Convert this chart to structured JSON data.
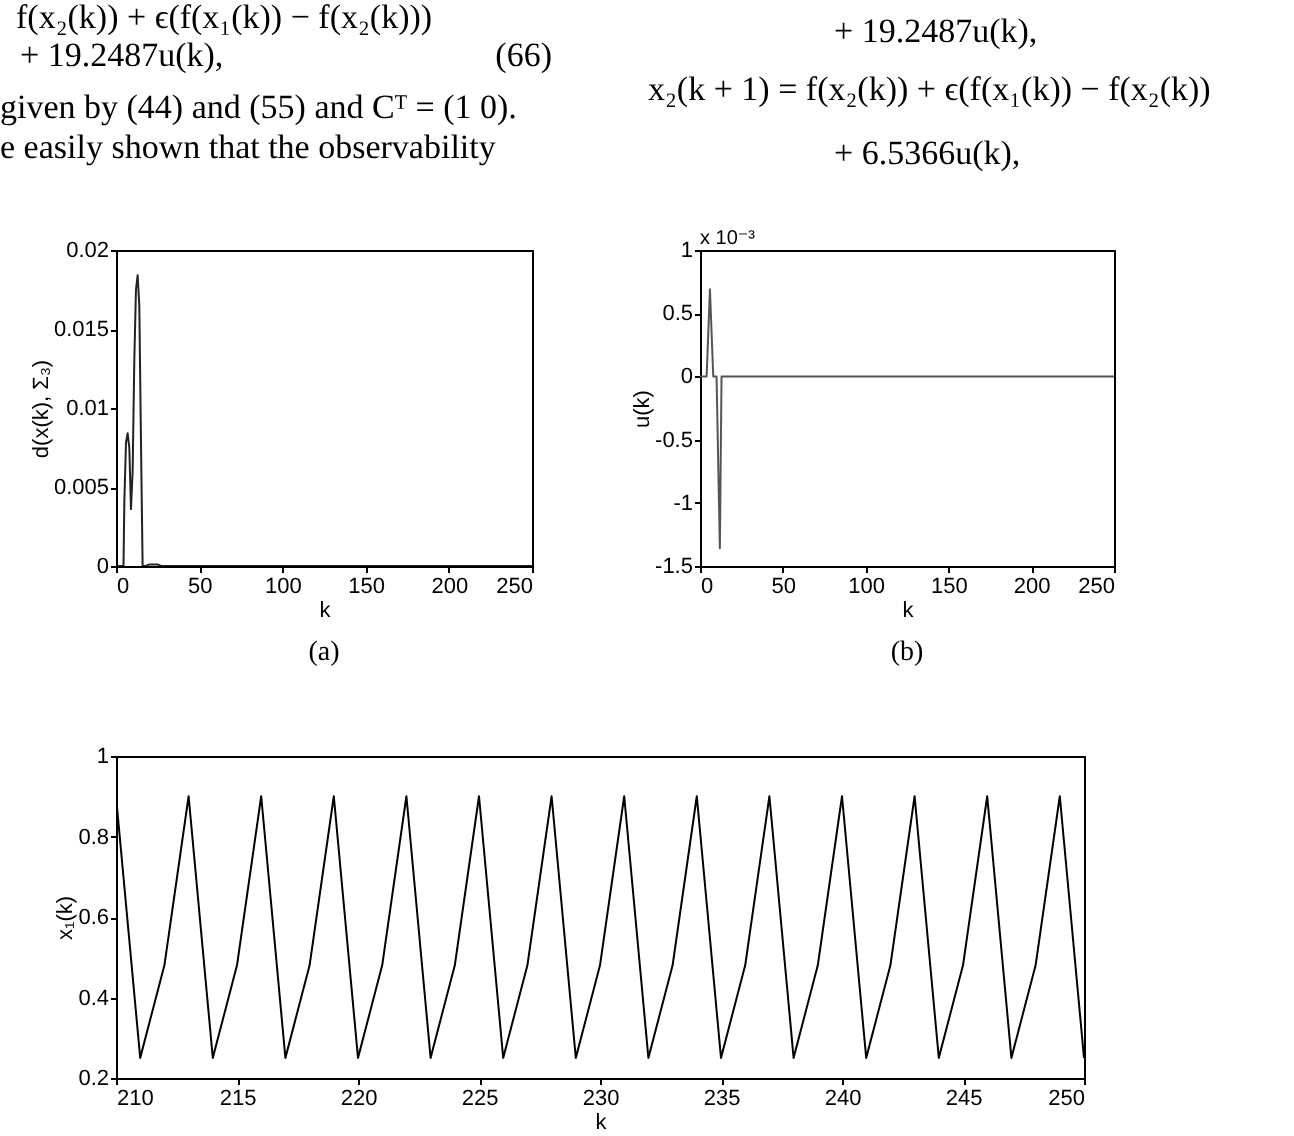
{
  "chart_data": [
    {
      "type": "other",
      "annotations": [
        "f(x₂(k)) + ϵ(f(x₁(k)) − f(x₂(k)))",
        "+ 19.2487u(k),",
        "(66)",
        "given by (44) and (55) and Cᵀ = (1 0).",
        "e easily shown that the observability",
        "+ 19.2487u(k),",
        "x₂(k + 1) = f(x₂(k)) + ϵ(f(x₁(k)) − f(x₂(k))",
        "+ 6.5366u(k),"
      ]
    },
    {
      "type": "line",
      "xlabel": "k",
      "ylabel": "d(x(k), Σ₃)",
      "xlim": [
        0,
        250
      ],
      "xticks": [
        0,
        50,
        100,
        150,
        200,
        250
      ],
      "ylim": [
        0,
        0.02
      ],
      "yticks": [
        0,
        0.005,
        0.01,
        0.015,
        0.02
      ],
      "grid": false,
      "annotations": [
        "(a)"
      ],
      "series": [
        {
          "color": "#222222",
          "x": [
            0,
            4.5,
            5,
            6,
            7,
            8,
            9,
            10,
            11,
            12,
            13,
            14,
            15,
            16,
            18,
            20,
            25,
            27,
            250
          ],
          "values": [
            0,
            0,
            0.004,
            0.0078,
            0.0084,
            0.0075,
            0.0036,
            0.006,
            0.013,
            0.0175,
            0.0184,
            0.0165,
            0.008,
            0,
            0,
            0.0001,
            0.0001,
            0,
            0
          ]
        }
      ]
    },
    {
      "type": "line",
      "xlabel": "k",
      "ylabel": "u(k)",
      "xlim": [
        0,
        250
      ],
      "xticks": [
        0,
        50,
        100,
        150,
        200,
        250
      ],
      "ylim": [
        -1.5,
        1
      ],
      "yticks": [
        -1.5,
        -1,
        -0.5,
        0,
        0.5,
        1
      ],
      "grid": false,
      "annotations": [
        "x 10⁻³",
        "(b)"
      ],
      "series": [
        {
          "color": "#555555",
          "x": [
            0,
            4,
            6,
            8,
            10,
            12,
            13,
            250
          ],
          "values": [
            0,
            0,
            0.69,
            0,
            0,
            -1.36,
            0,
            0
          ]
        }
      ]
    },
    {
      "type": "line",
      "xlabel": "k",
      "ylabel": "x₁(k)",
      "xlim": [
        210,
        250
      ],
      "xticks": [
        210,
        215,
        220,
        225,
        230,
        235,
        240,
        245,
        250
      ],
      "ylim": [
        0.2,
        1
      ],
      "yticks": [
        0.2,
        0.4,
        0.6,
        0.8,
        1
      ],
      "grid": false,
      "series": [
        {
          "color": "#000000",
          "x": [
            210,
            211,
            212,
            213,
            214,
            215,
            216,
            217,
            218,
            219,
            220,
            221,
            222,
            223,
            224,
            225,
            226,
            227,
            228,
            229,
            230,
            231,
            232,
            233,
            234,
            235,
            236,
            237,
            238,
            239,
            240,
            241,
            242,
            243,
            244,
            245,
            246,
            247,
            248,
            249,
            250
          ],
          "values": [
            0.9,
            0.25,
            0.48,
            0.9,
            0.25,
            0.48,
            0.9,
            0.25,
            0.48,
            0.9,
            0.25,
            0.48,
            0.9,
            0.25,
            0.48,
            0.9,
            0.25,
            0.48,
            0.9,
            0.25,
            0.48,
            0.9,
            0.25,
            0.48,
            0.9,
            0.25,
            0.48,
            0.9,
            0.25,
            0.48,
            0.9,
            0.25,
            0.48,
            0.9,
            0.25,
            0.48,
            0.9,
            0.25,
            0.48,
            0.9,
            0.25
          ]
        }
      ]
    }
  ]
}
